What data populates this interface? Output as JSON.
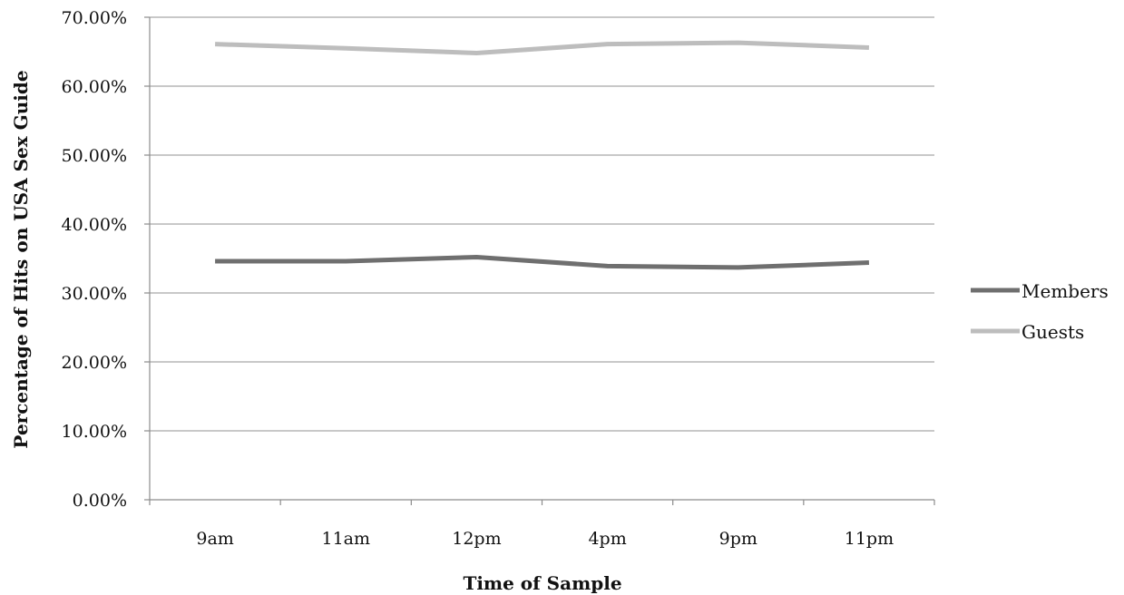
{
  "chart_data": {
    "type": "line",
    "title": "",
    "xlabel": "Time of Sample",
    "ylabel": "Percentage of Hits on USA Sex Guide",
    "categories": [
      "9am",
      "11am",
      "12pm",
      "4pm",
      "9pm",
      "11pm"
    ],
    "y_ticks": [
      "0.00%",
      "10.00%",
      "20.00%",
      "30.00%",
      "40.00%",
      "50.00%",
      "60.00%",
      "70.00%"
    ],
    "ylim": [
      0,
      70
    ],
    "grid": true,
    "legend_position": "right",
    "series": [
      {
        "name": "Members",
        "color": "#6f6f6f",
        "values": [
          34.6,
          34.6,
          35.2,
          33.9,
          33.7,
          34.4
        ]
      },
      {
        "name": "Guests",
        "color": "#bdbdbd",
        "values": [
          66.1,
          65.5,
          64.8,
          66.1,
          66.3,
          65.6
        ]
      }
    ]
  }
}
